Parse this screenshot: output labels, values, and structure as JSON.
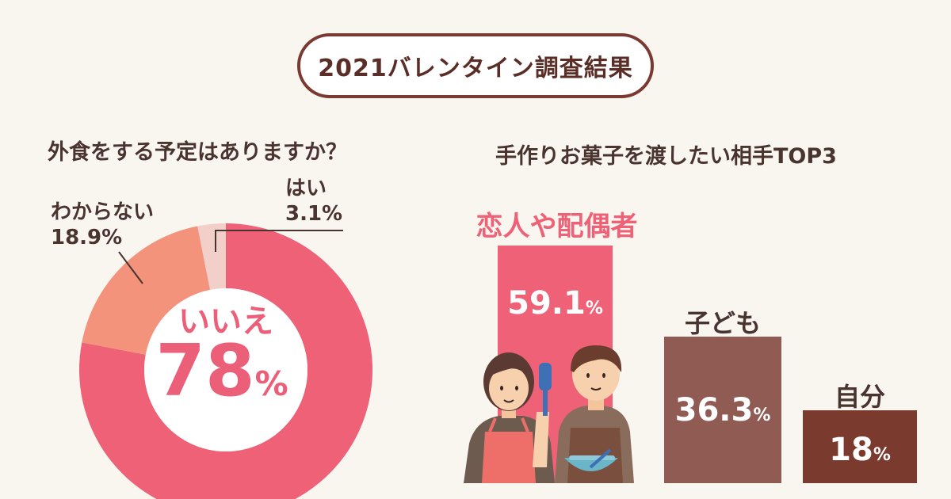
{
  "title": "2021バレンタイン調査結果",
  "chart_data": [
    {
      "type": "pie",
      "title": "外食をする予定はありますか？",
      "categories": [
        "いいえ",
        "わからない",
        "はい"
      ],
      "values": [
        78,
        18.9,
        3.1
      ],
      "value_labels": [
        "78",
        "18.9%",
        "3.1%"
      ],
      "unit": "%",
      "colors": [
        "#ee6177",
        "#f4937c",
        "#f3cfc9"
      ]
    },
    {
      "type": "bar",
      "title": "手作りお菓子を渡したい相手TOP3",
      "categories": [
        "恋人や配偶者",
        "子ども",
        "自分"
      ],
      "values": [
        59.1,
        36.3,
        18
      ],
      "value_labels": [
        "59.1",
        "36.3",
        "18"
      ],
      "unit": "%",
      "colors": [
        "#ee6177",
        "#8f5b52",
        "#7a3a2e"
      ]
    }
  ]
}
